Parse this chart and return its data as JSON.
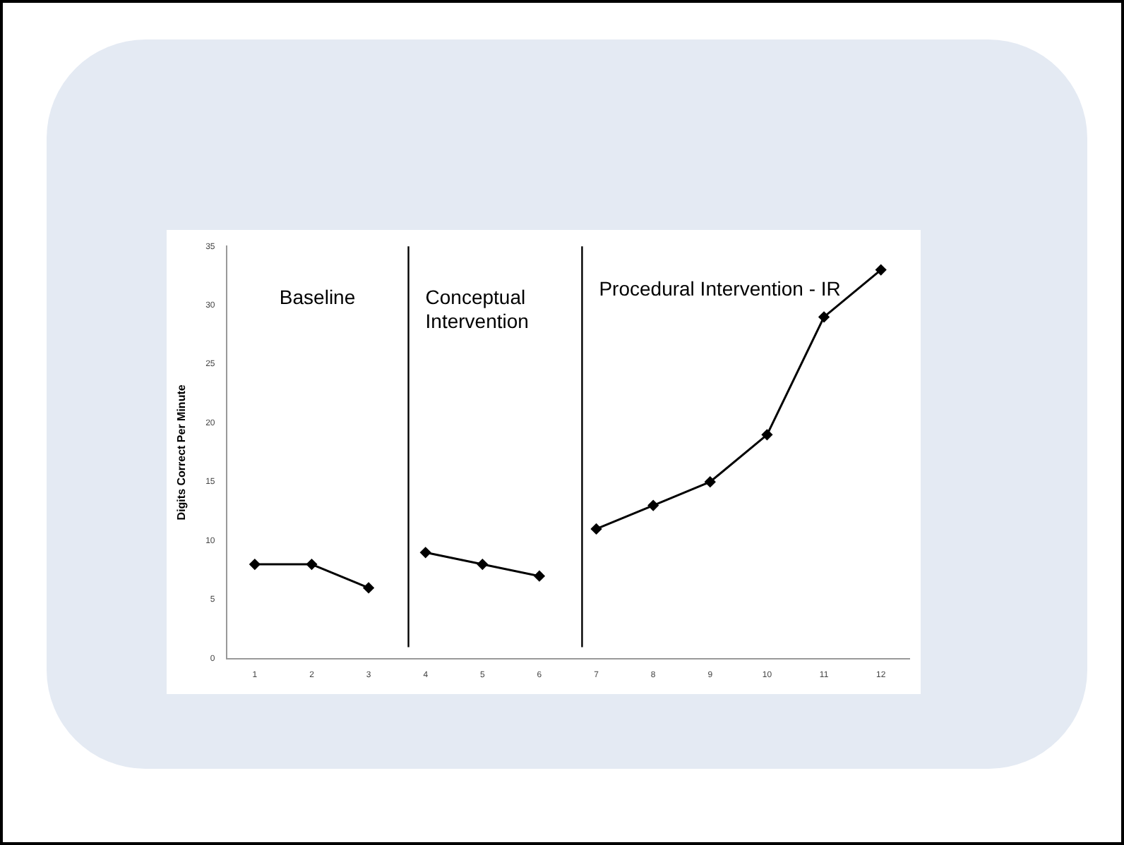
{
  "chart_data": {
    "type": "line",
    "ylabel": "Digits Correct Per Minute",
    "xlim": [
      0.5,
      12.5
    ],
    "xticks": [
      1,
      2,
      3,
      4,
      5,
      6,
      7,
      8,
      9,
      10,
      11,
      12
    ],
    "ylim": [
      0,
      35
    ],
    "yticks": [
      0,
      5,
      10,
      15,
      20,
      25,
      30,
      35
    ],
    "series": [
      {
        "color": "#000000",
        "x": [
          1,
          2,
          3
        ],
        "values": [
          8,
          8,
          6
        ]
      },
      {
        "color": "#000000",
        "x": [
          4,
          5,
          6
        ],
        "values": [
          9,
          8,
          7
        ]
      },
      {
        "color": "#000000",
        "x": [
          7,
          8,
          9,
          10,
          11,
          12
        ],
        "values": [
          11,
          13,
          15,
          19,
          29,
          33
        ]
      }
    ],
    "ref_lines": [
      {
        "axis": "x",
        "value": 3.7,
        "color": "#000000"
      },
      {
        "axis": "x",
        "value": 6.75,
        "color": "#000000"
      }
    ],
    "annotations": [
      "Baseline",
      "Conceptual Intervention",
      "Procedural Intervention - IR"
    ],
    "marker": "diamond",
    "line_style": "solid",
    "grid": false,
    "legend": false
  }
}
